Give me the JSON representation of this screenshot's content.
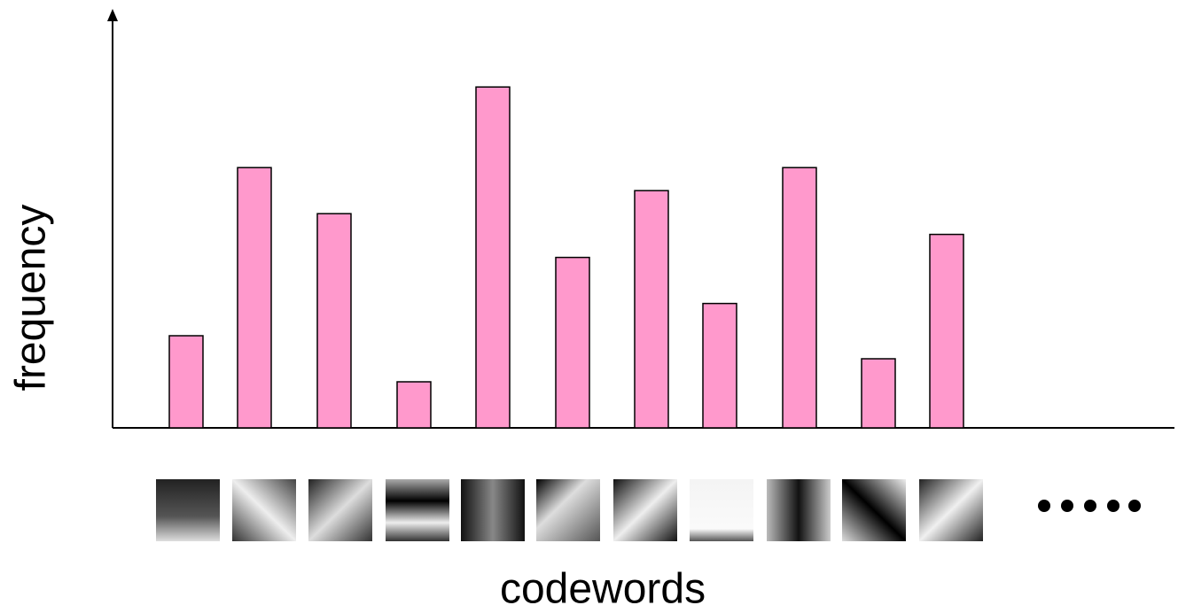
{
  "chart_data": {
    "type": "bar",
    "x_label": "codewords",
    "y_label": "frequency",
    "categories": [
      null,
      null,
      null,
      null,
      null,
      null,
      null,
      null,
      null,
      null,
      null
    ],
    "values": [
      4,
      11.3,
      9.3,
      2,
      14.8,
      7.4,
      10.3,
      5.4,
      11.3,
      3,
      8.4
    ],
    "color": "#ff99cc",
    "ylim": [
      0,
      18
    ]
  }
}
